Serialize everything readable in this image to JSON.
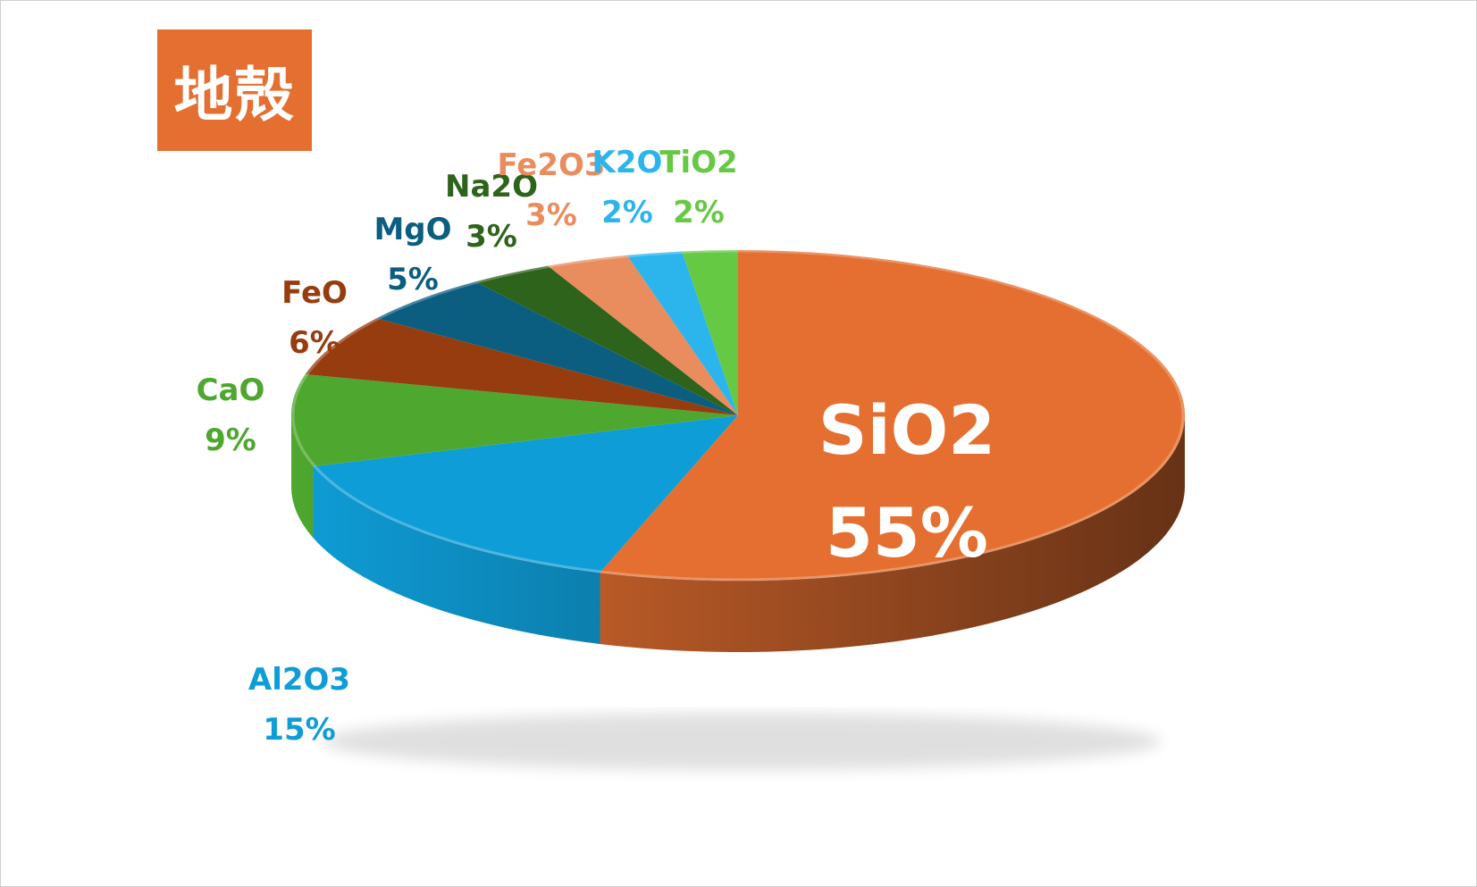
{
  "title": "地殻",
  "chart_data": {
    "type": "pie",
    "variant": "3d",
    "title": "地殻",
    "slices": [
      {
        "name": "SiO2",
        "value": 55,
        "label": "55%",
        "color": "#E46F30"
      },
      {
        "name": "Al2O3",
        "value": 15,
        "label": "15%",
        "color": "#0F9DD7"
      },
      {
        "name": "CaO",
        "value": 9,
        "label": "9%",
        "color": "#4EA72E"
      },
      {
        "name": "FeO",
        "value": 6,
        "label": "6%",
        "color": "#973C0F"
      },
      {
        "name": "MgO",
        "value": 5,
        "label": "5%",
        "color": "#0B5E80"
      },
      {
        "name": "Na2O",
        "value": 3,
        "label": "3%",
        "color": "#2E631B"
      },
      {
        "name": "Fe2O3",
        "value": 3,
        "label": "3%",
        "color": "#E98C5E"
      },
      {
        "name": "K2O",
        "value": 2,
        "label": "2%",
        "color": "#2CB5EC"
      },
      {
        "name": "TiO2",
        "value": 2,
        "label": "2%",
        "color": "#66C944"
      }
    ],
    "data_label_colors": {
      "SiO2": "#ffffff",
      "Al2O3": "#0F9DD7",
      "CaO": "#4EA72E",
      "FeO": "#973C0F",
      "MgO": "#0B5E80",
      "Na2O": "#2E631B",
      "Fe2O3": "#E98C5E",
      "K2O": "#2CB5EC",
      "TiO2": "#66C944"
    },
    "legend": "none"
  }
}
